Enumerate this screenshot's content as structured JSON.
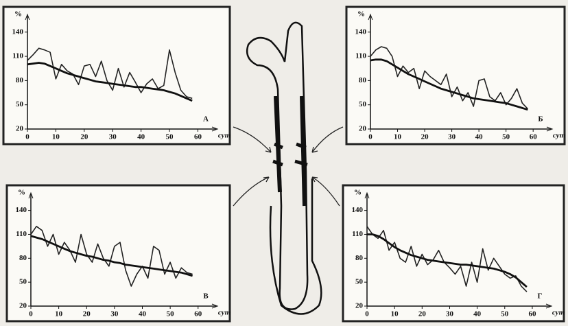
{
  "chart_data": [
    {
      "type": "line",
      "annotation": "А",
      "xlabel": "сут",
      "ylabel": "%",
      "x": [
        0,
        2,
        4,
        6,
        8,
        10,
        12,
        14,
        16,
        18,
        20,
        22,
        24,
        26,
        28,
        30,
        32,
        34,
        36,
        38,
        40,
        42,
        44,
        46,
        48,
        50,
        52,
        54,
        56,
        58
      ],
      "series": [
        {
          "color": "#222222",
          "values": [
            105,
            112,
            120,
            118,
            115,
            82,
            100,
            92,
            88,
            75,
            98,
            100,
            85,
            104,
            80,
            68,
            95,
            72,
            90,
            78,
            65,
            76,
            82,
            70,
            74,
            118,
            90,
            68,
            60,
            58
          ]
        },
        {
          "color": "#111111",
          "values": [
            100,
            101,
            102,
            101,
            98,
            95,
            92,
            89,
            87,
            85,
            83,
            81,
            79,
            78,
            77,
            76,
            75,
            74,
            73,
            72,
            72,
            71,
            70,
            69,
            68,
            66,
            64,
            61,
            58,
            55
          ]
        }
      ],
      "xlim": [
        0,
        64
      ],
      "xticks": [
        0,
        10,
        20,
        30,
        40,
        50,
        60
      ],
      "ylim": [
        20,
        150
      ],
      "yticks": [
        20,
        50,
        80,
        110,
        140
      ]
    },
    {
      "type": "line",
      "annotation": "Б",
      "xlabel": "сут",
      "ylabel": "%",
      "x": [
        0,
        2,
        4,
        6,
        8,
        10,
        12,
        14,
        16,
        18,
        20,
        22,
        24,
        26,
        28,
        30,
        32,
        34,
        36,
        38,
        40,
        42,
        44,
        46,
        48,
        50,
        52,
        54,
        56,
        58
      ],
      "series": [
        {
          "color": "#222222",
          "values": [
            110,
            118,
            122,
            120,
            110,
            85,
            98,
            90,
            95,
            70,
            92,
            85,
            80,
            75,
            88,
            60,
            72,
            55,
            65,
            48,
            80,
            82,
            60,
            55,
            65,
            50,
            58,
            70,
            52,
            45
          ]
        },
        {
          "color": "#111111",
          "values": [
            105,
            106,
            106,
            104,
            100,
            96,
            92,
            88,
            85,
            82,
            79,
            76,
            73,
            70,
            68,
            66,
            64,
            62,
            60,
            58,
            57,
            56,
            55,
            54,
            53,
            52,
            50,
            48,
            46,
            44
          ]
        }
      ],
      "xlim": [
        0,
        64
      ],
      "xticks": [
        0,
        10,
        20,
        30,
        40,
        50,
        60
      ],
      "ylim": [
        20,
        150
      ],
      "yticks": [
        20,
        50,
        80,
        110,
        140
      ]
    },
    {
      "type": "line",
      "annotation": "В",
      "xlabel": "сут",
      "ylabel": "%",
      "x": [
        0,
        2,
        4,
        6,
        8,
        10,
        12,
        14,
        16,
        18,
        20,
        22,
        24,
        26,
        28,
        30,
        32,
        34,
        36,
        38,
        40,
        42,
        44,
        46,
        48,
        50,
        52,
        54,
        56,
        58
      ],
      "series": [
        {
          "color": "#222222",
          "values": [
            110,
            120,
            115,
            95,
            110,
            85,
            100,
            90,
            75,
            110,
            85,
            75,
            98,
            80,
            70,
            95,
            100,
            65,
            45,
            60,
            70,
            55,
            95,
            90,
            60,
            75,
            55,
            68,
            62,
            60
          ]
        },
        {
          "color": "#111111",
          "values": [
            108,
            106,
            104,
            101,
            98,
            95,
            92,
            89,
            87,
            85,
            83,
            82,
            80,
            78,
            77,
            75,
            74,
            72,
            71,
            70,
            69,
            68,
            67,
            66,
            65,
            64,
            63,
            62,
            60,
            58
          ]
        }
      ],
      "xlim": [
        0,
        64
      ],
      "xticks": [
        0,
        10,
        20,
        30,
        40,
        50,
        60
      ],
      "ylim": [
        20,
        150
      ],
      "yticks": [
        20,
        50,
        80,
        110,
        140
      ]
    },
    {
      "type": "line",
      "annotation": "Г",
      "xlabel": "сут",
      "ylabel": "%",
      "x": [
        0,
        2,
        4,
        6,
        8,
        10,
        12,
        14,
        16,
        18,
        20,
        22,
        24,
        26,
        28,
        30,
        32,
        34,
        36,
        38,
        40,
        42,
        44,
        46,
        48,
        50,
        52,
        54,
        56,
        58
      ],
      "series": [
        {
          "color": "#222222",
          "values": [
            120,
            110,
            105,
            115,
            90,
            100,
            80,
            75,
            95,
            70,
            85,
            72,
            78,
            90,
            75,
            68,
            60,
            70,
            45,
            75,
            50,
            92,
            65,
            80,
            70,
            60,
            55,
            58,
            45,
            38
          ]
        },
        {
          "color": "#111111",
          "values": [
            110,
            110,
            108,
            104,
            99,
            94,
            90,
            87,
            84,
            82,
            80,
            78,
            77,
            76,
            75,
            74,
            73,
            72,
            72,
            71,
            70,
            69,
            68,
            67,
            65,
            63,
            60,
            56,
            50,
            44
          ]
        }
      ],
      "xlim": [
        0,
        64
      ],
      "xticks": [
        0,
        10,
        20,
        30,
        40,
        50,
        60
      ],
      "ylim": [
        20,
        150
      ],
      "yticks": [
        20,
        50,
        80,
        110,
        140
      ]
    }
  ]
}
